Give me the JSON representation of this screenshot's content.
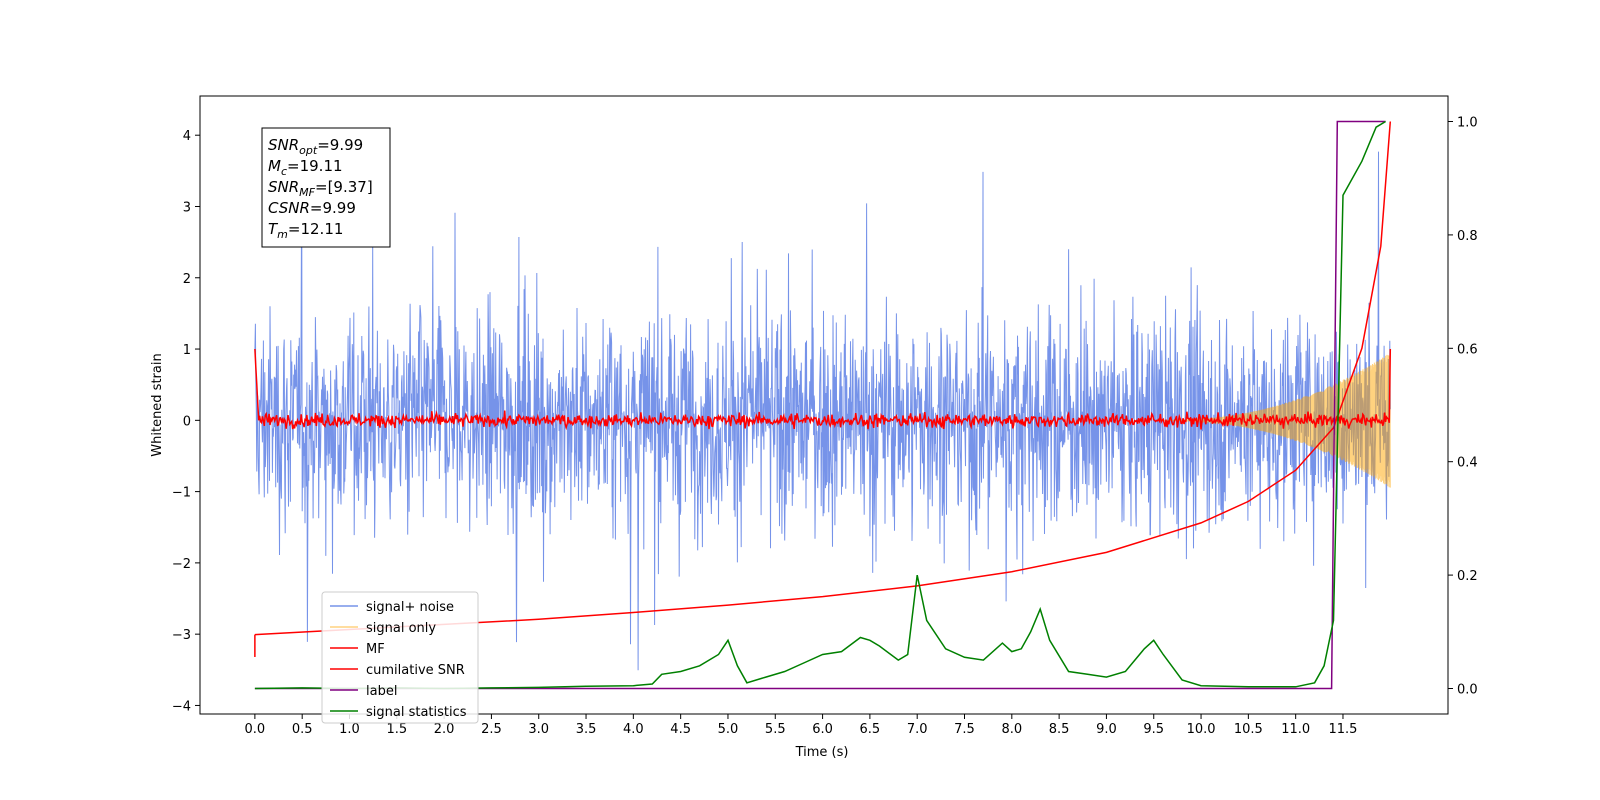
{
  "chart_data": {
    "type": "line",
    "title": "",
    "xlabel": "Time (s)",
    "ylabel": "Whitened strain",
    "ylabel_right": "",
    "xlim": [
      -0.58,
      12.61
    ],
    "ylim": [
      -4.12,
      4.55
    ],
    "ylim_right": [
      -0.045,
      1.045
    ],
    "x_ticks": [
      "0.0",
      "0.5",
      "1.0",
      "1.5",
      "2.0",
      "2.5",
      "3.0",
      "3.5",
      "4.0",
      "4.5",
      "5.0",
      "5.5",
      "6.0",
      "6.5",
      "7.0",
      "7.5",
      "8.0",
      "8.5",
      "9.0",
      "9.5",
      "10.0",
      "10.5",
      "11.0",
      "11.5"
    ],
    "y_ticks_left": [
      "−4",
      "−3",
      "−2",
      "−1",
      "0",
      "1",
      "2",
      "3",
      "4"
    ],
    "y_ticks_right": [
      "0.0",
      "0.2",
      "0.4",
      "0.6",
      "0.8",
      "1.0"
    ],
    "grid": false,
    "legend_position": "lower-left",
    "annotation_box": {
      "snr_opt": {
        "main": "SNR",
        "sub": "opt",
        "value": "=9.99"
      },
      "mc": {
        "main": "M",
        "sub": "c",
        "value": "=19.11"
      },
      "snr_mf": {
        "main": "SNR",
        "sub": "MF",
        "value": "=[9.37]"
      },
      "csnr": {
        "main": "CSNR",
        "sub": "",
        "value": "=9.99"
      },
      "tm": {
        "main": "T",
        "sub": "m",
        "value": "=12.11"
      }
    },
    "series": [
      {
        "name": "signal+ noise",
        "color": "#4169e1",
        "axis": "left",
        "description": "whitened noise plus signal, spans roughly -3.7 to 4.2 across 0 to 12 s"
      },
      {
        "name": "signal only",
        "color": "#ffa500",
        "axis": "left",
        "description": "chirp growing from 0 amplitude to about ±1 near 12 s"
      },
      {
        "name": "MF",
        "color": "#ff0000",
        "axis": "left",
        "description": "matched filter output, fluctuating near 0 with start value 1.0"
      },
      {
        "name": "cumilative SNR",
        "color": "#ff0000",
        "axis": "right",
        "x": [
          0.0,
          1,
          2,
          3,
          4,
          5,
          6,
          7,
          8,
          9,
          10,
          10.5,
          11,
          11.4,
          11.7,
          11.9,
          12.0
        ],
        "y": [
          0.095,
          0.104,
          0.113,
          0.122,
          0.134,
          0.147,
          0.162,
          0.181,
          0.206,
          0.24,
          0.292,
          0.33,
          0.385,
          0.46,
          0.6,
          0.78,
          1.0
        ]
      },
      {
        "name": "label",
        "color": "#800080",
        "axis": "right",
        "x": [
          0.0,
          11.38,
          11.44,
          11.95
        ],
        "y": [
          0.0,
          0.0,
          1.0,
          1.0
        ]
      },
      {
        "name": "signal statistics",
        "color": "#008000",
        "axis": "right",
        "x": [
          0.0,
          0.5,
          1.0,
          1.5,
          2.0,
          2.5,
          3.0,
          3.5,
          4.0,
          4.2,
          4.3,
          4.5,
          4.7,
          4.9,
          5.0,
          5.1,
          5.2,
          5.4,
          5.6,
          5.8,
          6.0,
          6.2,
          6.4,
          6.5,
          6.6,
          6.8,
          6.9,
          7.0,
          7.1,
          7.3,
          7.5,
          7.7,
          7.9,
          8.0,
          8.1,
          8.2,
          8.3,
          8.4,
          8.6,
          8.8,
          9.0,
          9.2,
          9.4,
          9.5,
          9.6,
          9.8,
          10.0,
          10.5,
          11.0,
          11.2,
          11.3,
          11.4,
          11.5,
          11.7,
          11.85,
          11.95
        ],
        "y": [
          0.0,
          0.001,
          0.0,
          0.001,
          0.0,
          0.001,
          0.002,
          0.004,
          0.005,
          0.008,
          0.025,
          0.03,
          0.04,
          0.06,
          0.085,
          0.04,
          0.01,
          0.02,
          0.03,
          0.045,
          0.06,
          0.065,
          0.09,
          0.085,
          0.075,
          0.05,
          0.06,
          0.2,
          0.12,
          0.07,
          0.055,
          0.05,
          0.08,
          0.065,
          0.07,
          0.1,
          0.14,
          0.085,
          0.03,
          0.025,
          0.02,
          0.03,
          0.07,
          0.085,
          0.06,
          0.015,
          0.005,
          0.003,
          0.003,
          0.01,
          0.04,
          0.12,
          0.87,
          0.93,
          0.99,
          1.0
        ]
      }
    ]
  }
}
